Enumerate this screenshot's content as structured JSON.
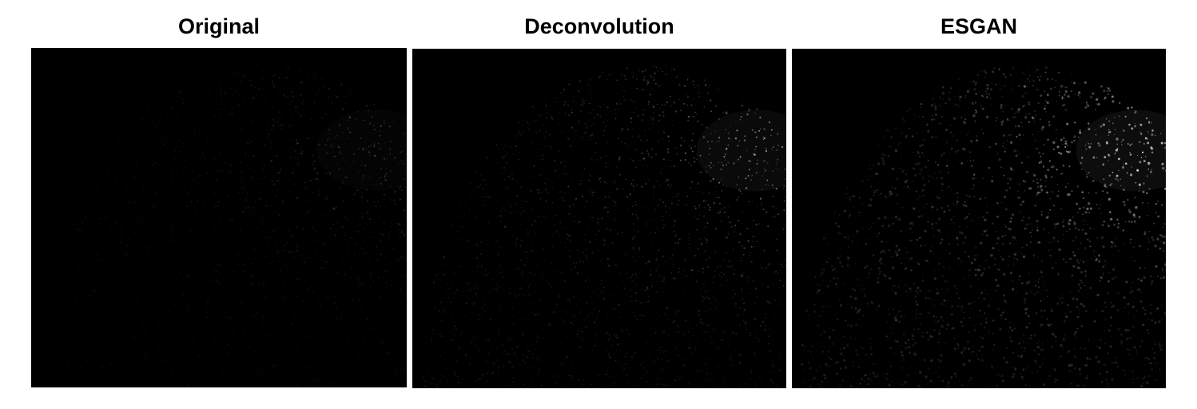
{
  "panels": [
    {
      "title": "Original",
      "brightness": 0.32,
      "seed": 11
    },
    {
      "title": "Deconvolution",
      "brightness": 0.75,
      "seed": 23
    },
    {
      "title": "ESGAN",
      "brightness": 1.0,
      "seed": 37
    }
  ],
  "colors": {
    "background": "#ffffff",
    "image_background": "#000000",
    "speckle": "#ffffff"
  }
}
